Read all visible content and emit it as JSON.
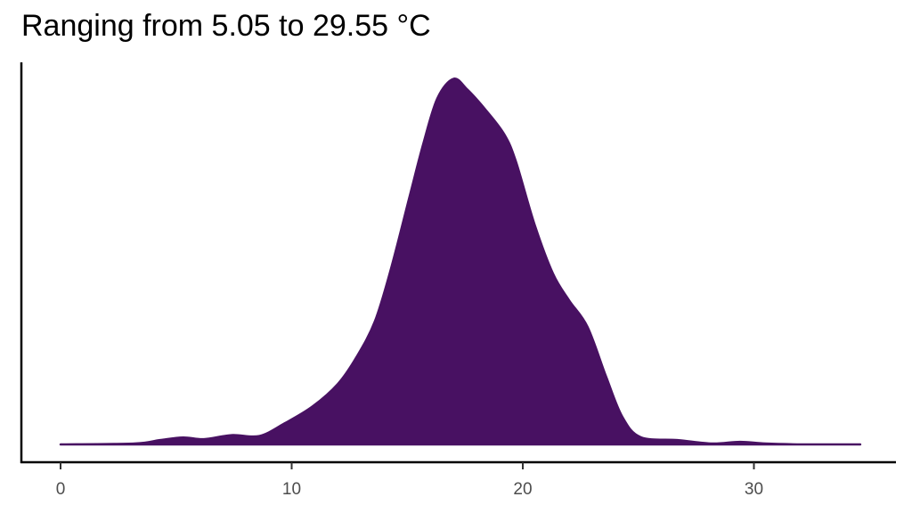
{
  "chart_data": {
    "type": "area",
    "subtype": "density",
    "title": "Ranging from 5.05 to 29.55 °C",
    "xlabel": "",
    "ylabel": "",
    "x_ticks": [
      "0",
      "10",
      "20",
      "30"
    ],
    "xlim": [
      0,
      34.6
    ],
    "y_ticks": [],
    "grid": false,
    "legend": null,
    "fill_color": "#481162",
    "x": [
      0,
      3.2,
      4.3,
      5.3,
      6.2,
      7.4,
      8.6,
      9.7,
      10.9,
      12.0,
      12.8,
      13.6,
      14.3,
      15.1,
      15.7,
      16.3,
      17.0,
      17.6,
      18.4,
      19.2,
      19.7,
      20.5,
      21.3,
      22.0,
      22.8,
      23.6,
      24.3,
      25.1,
      26.7,
      28.2,
      29.4,
      30.5,
      32.1,
      34.6
    ],
    "y": [
      0.0,
      0.003,
      0.015,
      0.024,
      0.018,
      0.032,
      0.029,
      0.073,
      0.131,
      0.209,
      0.301,
      0.425,
      0.608,
      0.856,
      1.04,
      1.195,
      1.263,
      1.226,
      1.155,
      1.071,
      0.978,
      0.762,
      0.591,
      0.498,
      0.406,
      0.235,
      0.096,
      0.025,
      0.015,
      0.003,
      0.009,
      0.003,
      0.0,
      0.0
    ]
  }
}
